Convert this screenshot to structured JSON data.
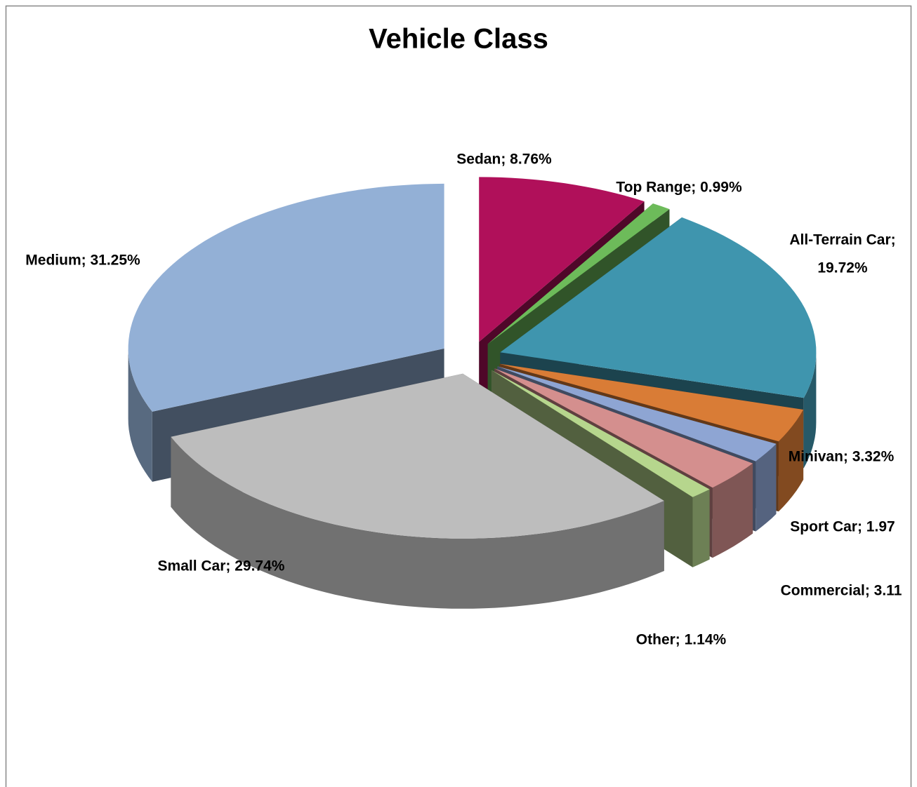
{
  "chart_data": {
    "type": "pie3d",
    "title": "Vehicle Class",
    "categories": [
      "Sedan",
      "Top Range",
      "All-Terrain Car",
      "Minivan",
      "Sport Car",
      "Commercial",
      "Other",
      "Small Car",
      "Medium"
    ],
    "values": [
      8.76,
      0.99,
      19.72,
      3.32,
      1.97,
      3.11,
      1.14,
      29.74,
      31.25
    ],
    "value_labels": [
      "Sedan; 8.76%",
      "Top Range; 0.99%",
      [
        "All-Terrain Car;",
        "19.72%"
      ],
      "Minivan; 3.32%",
      "Sport Car; 1.97",
      "Commercial; 3.11",
      "Other; 1.14%",
      "Small Car; 29.74%",
      "Medium; 31.25%"
    ],
    "colors": [
      "#b0105a",
      "#6dbb5a",
      "#3f95ae",
      "#d97c36",
      "#8ea5d3",
      "#d48f8e",
      "#b6d68d",
      "#bdbdbd",
      "#93b0d6"
    ]
  }
}
